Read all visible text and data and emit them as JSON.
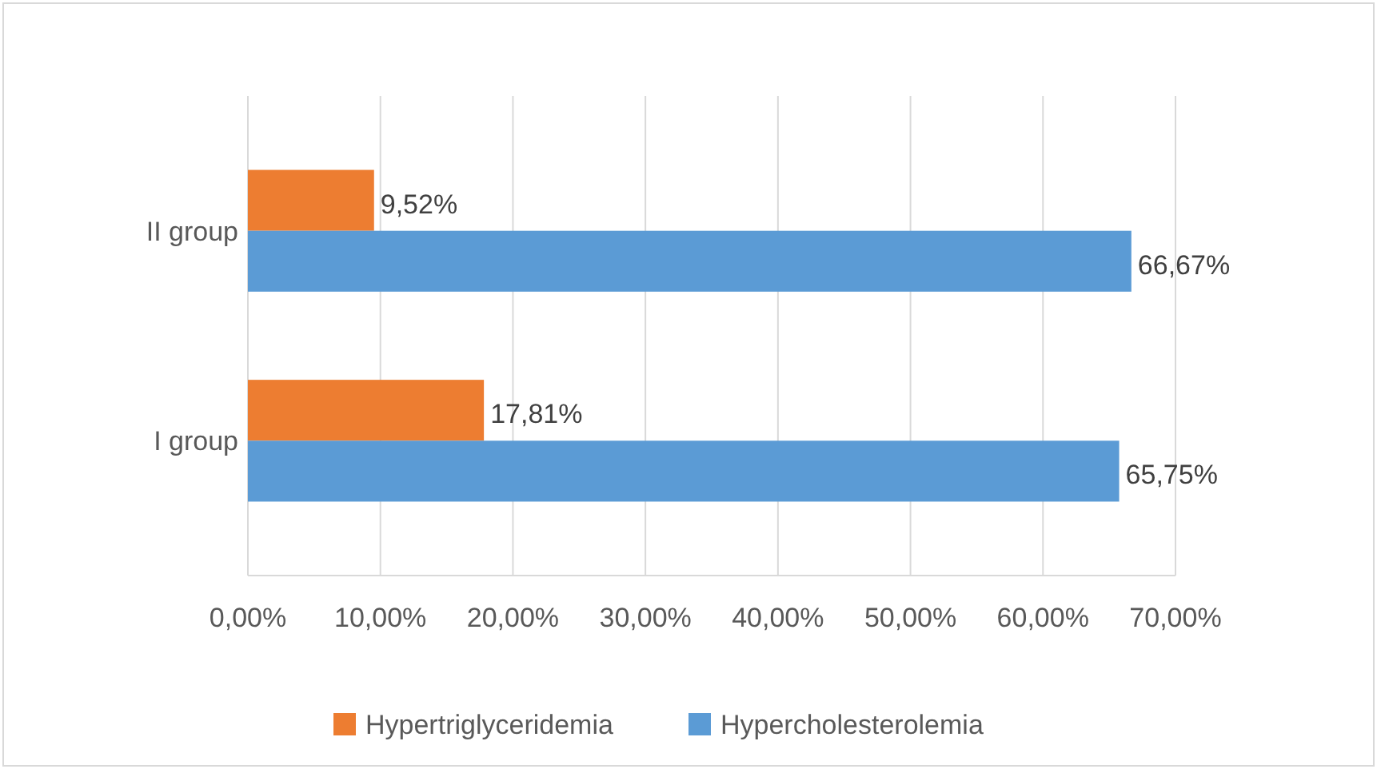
{
  "chart_data": {
    "type": "bar",
    "orientation": "horizontal",
    "categories": [
      "II group",
      "I group"
    ],
    "series": [
      {
        "name": "Hypertriglyceridemia",
        "color": "#ed7d31",
        "values": [
          9.52,
          17.81
        ],
        "value_labels": [
          "9,52%",
          "17,81%"
        ]
      },
      {
        "name": "Hypercholesterolemia",
        "color": "#5b9bd5",
        "values": [
          66.67,
          65.75
        ],
        "value_labels": [
          "66,67%",
          "65,75%"
        ]
      }
    ],
    "xlim": [
      0,
      70
    ],
    "xticks": [
      {
        "value": 0,
        "label": "0,00%"
      },
      {
        "value": 10,
        "label": "10,00%"
      },
      {
        "value": 20,
        "label": "20,00%"
      },
      {
        "value": 30,
        "label": "30,00%"
      },
      {
        "value": 40,
        "label": "40,00%"
      },
      {
        "value": 50,
        "label": "50,00%"
      },
      {
        "value": 60,
        "label": "60,00%"
      },
      {
        "value": 70,
        "label": "70,00%"
      }
    ],
    "grid": "x",
    "legend": "bottom"
  }
}
